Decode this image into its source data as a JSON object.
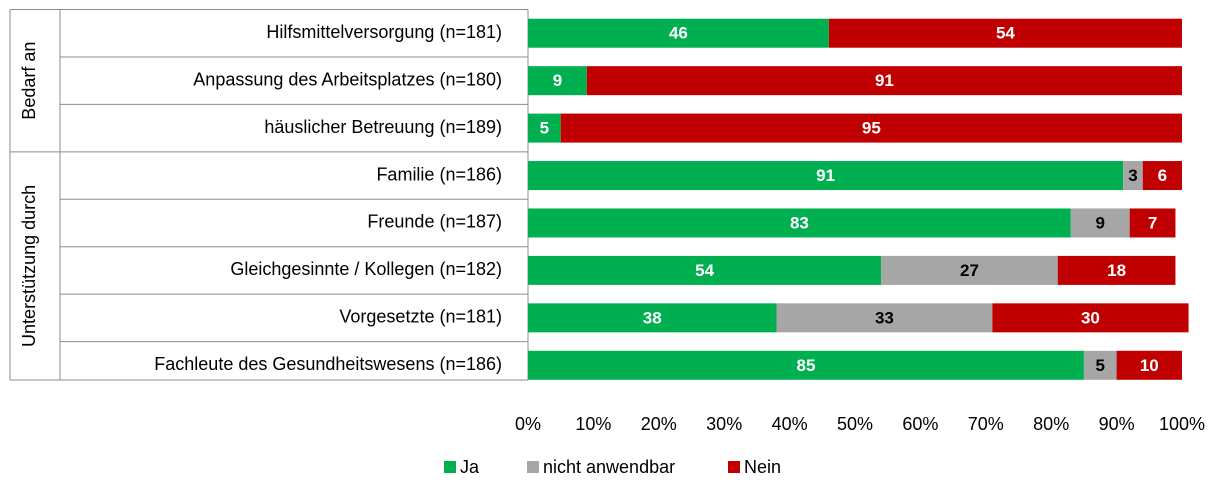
{
  "chart_data": {
    "type": "stacked-bar-horizontal",
    "categories": [
      "Hilfsmittelversorgung (n=181)",
      "Anpassung des Arbeitsplatzes (n=180)",
      "häuslicher Betreuung (n=189)",
      "Familie (n=186)",
      "Freunde (n=187)",
      "Gleichgesinnte / Kollegen (n=182)",
      "Vorgesetzte (n=181)",
      "Fachleute des Gesundheitswesens (n=186)"
    ],
    "groups": [
      {
        "label": "Bedarf an",
        "count": 3
      },
      {
        "label": "Unterstützung durch",
        "count": 5
      }
    ],
    "series": [
      {
        "name": "Ja",
        "color": "#00b050",
        "label_color": "#ffffff",
        "values": [
          46,
          9,
          5,
          91,
          83,
          54,
          38,
          85
        ]
      },
      {
        "name": "nicht anwendbar",
        "color": "#a6a6a6",
        "label_color": "#000000",
        "values": [
          null,
          null,
          null,
          3,
          9,
          27,
          33,
          5
        ]
      },
      {
        "name": "Nein",
        "color": "#c00000",
        "label_color": "#ffffff",
        "values": [
          54,
          91,
          95,
          6,
          7,
          18,
          30,
          10
        ]
      }
    ],
    "xlim": [
      0,
      100
    ],
    "xticks": [
      {
        "value": 0,
        "label": "0%"
      },
      {
        "value": 10,
        "label": "10%"
      },
      {
        "value": 20,
        "label": "20%"
      },
      {
        "value": 30,
        "label": "30%"
      },
      {
        "value": 40,
        "label": "40%"
      },
      {
        "value": 50,
        "label": "50%"
      },
      {
        "value": 60,
        "label": "60%"
      },
      {
        "value": 70,
        "label": "70%"
      },
      {
        "value": 80,
        "label": "80%"
      },
      {
        "value": 90,
        "label": "90%"
      },
      {
        "value": 100,
        "label": "100%"
      }
    ],
    "legend": "bottom"
  }
}
